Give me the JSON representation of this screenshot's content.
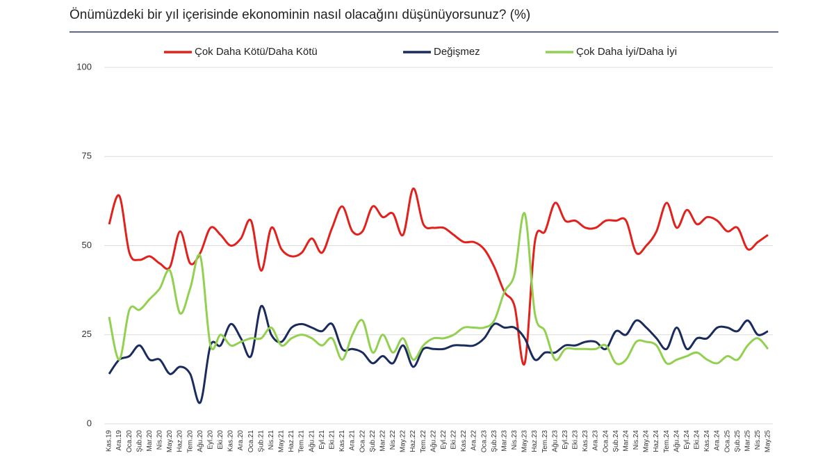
{
  "chart_data": {
    "type": "line",
    "title": "Önümüzdeki bir yıl içerisinde ekonominin nasıl olacağını düşünüyorsunuz? (%)",
    "categories": [
      "Kas.19",
      "Ara.19",
      "Oca.20",
      "Şub.20",
      "Mar.20",
      "Nis.20",
      "May.20",
      "Haz.20",
      "Tem.20",
      "Ağu.20",
      "Eyl.20",
      "Eki.20",
      "Kas.20",
      "Ara.20",
      "Oca.21",
      "Şub.21",
      "Nis.21",
      "May.21",
      "Haz.21",
      "Tem.21",
      "Ağu.21",
      "Eyl.21",
      "Eki.21",
      "Kas.21",
      "Ara.21",
      "Oca.22",
      "Şub.22",
      "Mar.22",
      "Nis.22",
      "May.22",
      "Haz.22",
      "Tem.22",
      "Ağu.22",
      "Eyl.22",
      "Eki.22",
      "Kas.22",
      "Ara.22",
      "Oca.23",
      "Şub.23",
      "Mar.23",
      "Nis.23",
      "May.23",
      "Haz.23",
      "Tem.23",
      "Ağu.23",
      "Eyl.23",
      "Eki.23",
      "Kas.23",
      "Ara.23",
      "Oca.24",
      "Şub.24",
      "Mar.24",
      "Nis.24",
      "May.24",
      "Haz.24",
      "Tem.24",
      "Ağu.24",
      "Eyl.24",
      "Eki.24",
      "Kas.24",
      "Ara.24",
      "Oca.25",
      "Şub.25",
      "Mar.25",
      "Nis.25",
      "May.25"
    ],
    "series": [
      {
        "name": "Çok Daha Kötü/Daha Kötü",
        "color": "#e3211c",
        "values": [
          56,
          64,
          48,
          46,
          47,
          45,
          44,
          54,
          45,
          48,
          55,
          53,
          50,
          52,
          57,
          43,
          55,
          49,
          47,
          48,
          52,
          48,
          55,
          61,
          54,
          54,
          61,
          58,
          59,
          53,
          66,
          56,
          55,
          55,
          53,
          51,
          51,
          49,
          44,
          37,
          33,
          17,
          51,
          54,
          62,
          57,
          57,
          55,
          55,
          57,
          57,
          57,
          48,
          50,
          54,
          62,
          55,
          60,
          56,
          58,
          57,
          54,
          55,
          49,
          51,
          53
        ]
      },
      {
        "name": "Değişmez",
        "color": "#1a2b5e",
        "values": [
          14,
          18,
          19,
          22,
          18,
          18,
          14,
          16,
          14,
          6,
          22,
          22,
          28,
          24,
          19,
          33,
          25,
          23,
          27,
          28,
          27,
          26,
          28,
          21,
          21,
          20,
          17,
          19,
          17,
          22,
          16,
          21,
          21,
          21,
          22,
          22,
          22,
          24,
          28,
          27,
          27,
          24,
          18,
          20,
          20,
          22,
          22,
          23,
          23,
          21,
          26,
          25,
          29,
          27,
          24,
          21,
          27,
          21,
          24,
          24,
          27,
          27,
          26,
          29,
          25,
          26
        ]
      },
      {
        "name": "Çok Daha İyi/Daha İyi",
        "color": "#92d050",
        "values": [
          30,
          18,
          32,
          32,
          35,
          38,
          43,
          31,
          38,
          47,
          22,
          25,
          22,
          23,
          24,
          24,
          27,
          22,
          24,
          25,
          24,
          22,
          24,
          18,
          25,
          29,
          20,
          25,
          20,
          24,
          18,
          22,
          24,
          24,
          25,
          27,
          27,
          27,
          29,
          37,
          42,
          59,
          31,
          26,
          18,
          21,
          21,
          21,
          21,
          22,
          17,
          18,
          23,
          23,
          22,
          17,
          18,
          19,
          20,
          18,
          17,
          19,
          18,
          22,
          24,
          21
        ]
      }
    ],
    "ylim": [
      0,
      100
    ],
    "yticks": [
      0,
      25,
      50,
      75,
      100
    ],
    "grid": true,
    "legend": "top"
  }
}
